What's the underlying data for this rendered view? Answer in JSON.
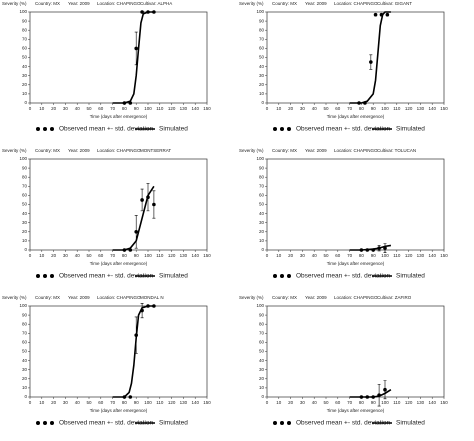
{
  "chart_data": [
    {
      "type": "scatter",
      "header": [
        "Country: MX",
        "Year: 2009",
        "Location: CHAPINGO",
        "Cultivar: ALPHA"
      ],
      "x_label": "Time (days after emergence)",
      "y_label": "Severity (%)",
      "xlim": [
        0,
        150
      ],
      "xticks": [
        0,
        10,
        20,
        30,
        40,
        50,
        60,
        70,
        80,
        90,
        100,
        110,
        120,
        130,
        140,
        150
      ],
      "ylim": [
        0,
        100
      ],
      "yticks": [
        0,
        10,
        20,
        30,
        40,
        50,
        60,
        70,
        80,
        90,
        100
      ],
      "series": [
        {
          "name": "Observed mean +- std. deviation",
          "mode": "markers",
          "color": "#000000",
          "x": [
            80,
            85,
            90,
            95,
            100,
            105
          ],
          "values": [
            0,
            0,
            60,
            100,
            100,
            100
          ],
          "errors": [
            0,
            0,
            18,
            0,
            0,
            0
          ]
        },
        {
          "name": "Simulated",
          "mode": "lines",
          "color": "#000000",
          "x": [
            70,
            80,
            85,
            88,
            90,
            92,
            94,
            96,
            100,
            105
          ],
          "values": [
            0,
            0,
            2,
            10,
            30,
            60,
            88,
            98,
            100,
            100
          ]
        }
      ]
    },
    {
      "type": "scatter",
      "header": [
        "Country: MX",
        "Year: 2009",
        "Location: CHAPINGO",
        "Cultivar: GIGANT"
      ],
      "x_label": "Time (days after emergence)",
      "y_label": "Severity (%)",
      "xlim": [
        0,
        150
      ],
      "xticks": [
        0,
        10,
        20,
        30,
        40,
        50,
        60,
        70,
        80,
        90,
        100,
        110,
        120,
        130,
        140,
        150
      ],
      "ylim": [
        0,
        100
      ],
      "yticks": [
        0,
        10,
        20,
        30,
        40,
        50,
        60,
        70,
        80,
        90,
        100
      ],
      "series": [
        {
          "name": "Observed mean +- std. deviation",
          "mode": "markers",
          "color": "#000000",
          "x": [
            78,
            83,
            88,
            92,
            97,
            102
          ],
          "values": [
            0,
            0,
            45,
            97,
            97,
            97
          ],
          "errors": [
            0,
            0,
            8,
            0,
            0,
            0
          ]
        },
        {
          "name": "Simulated",
          "mode": "lines",
          "color": "#000000",
          "x": [
            70,
            80,
            85,
            90,
            92,
            94,
            96,
            98,
            100,
            105
          ],
          "values": [
            0,
            0,
            2,
            10,
            25,
            55,
            85,
            97,
            100,
            100
          ]
        }
      ]
    },
    {
      "type": "scatter",
      "header": [
        "Country: MX",
        "Year: 2009",
        "Location: CHAPINGO",
        "MONTSERRAT"
      ],
      "x_label": "Time (days after emergence)",
      "y_label": "Severity (%)",
      "xlim": [
        0,
        150
      ],
      "xticks": [
        0,
        10,
        20,
        30,
        40,
        50,
        60,
        70,
        80,
        90,
        100,
        110,
        120,
        130,
        140,
        150
      ],
      "ylim": [
        0,
        100
      ],
      "yticks": [
        0,
        10,
        20,
        30,
        40,
        50,
        60,
        70,
        80,
        90,
        100
      ],
      "series": [
        {
          "name": "Observed mean +- std. deviation",
          "mode": "markers",
          "color": "#000000",
          "x": [
            80,
            85,
            90,
            95,
            100,
            105
          ],
          "values": [
            0,
            0,
            20,
            55,
            58,
            50
          ],
          "errors": [
            0,
            0,
            18,
            12,
            15,
            15
          ]
        },
        {
          "name": "Simulated",
          "mode": "lines",
          "color": "#000000",
          "x": [
            70,
            80,
            85,
            90,
            95,
            100,
            105
          ],
          "values": [
            0,
            0,
            2,
            10,
            35,
            60,
            70
          ]
        }
      ]
    },
    {
      "type": "scatter",
      "header": [
        "Country: MX",
        "Year: 2009",
        "Location: CHAPINGO",
        "Cultivar: TOLUCAN"
      ],
      "x_label": "Time (days after emergence)",
      "y_label": "Severity (%)",
      "xlim": [
        0,
        150
      ],
      "xticks": [
        0,
        10,
        20,
        30,
        40,
        50,
        60,
        70,
        80,
        90,
        100,
        110,
        120,
        130,
        140,
        150
      ],
      "ylim": [
        0,
        100
      ],
      "yticks": [
        0,
        10,
        20,
        30,
        40,
        50,
        60,
        70,
        80,
        90,
        100
      ],
      "series": [
        {
          "name": "Observed mean +- std. deviation",
          "mode": "markers",
          "color": "#000000",
          "x": [
            80,
            85,
            90,
            95,
            100
          ],
          "values": [
            0,
            0,
            0,
            2,
            2
          ],
          "errors": [
            0,
            0,
            0,
            3,
            5
          ]
        },
        {
          "name": "Simulated",
          "mode": "lines",
          "color": "#000000",
          "x": [
            70,
            80,
            90,
            95,
            100,
            105
          ],
          "values": [
            0,
            0,
            1,
            2,
            4,
            5
          ]
        }
      ]
    },
    {
      "type": "scatter",
      "header": [
        "Country: MX",
        "Year: 2009",
        "Location: CHAPINGO",
        "MONDAL N"
      ],
      "x_label": "Time (days after emergence)",
      "y_label": "Severity (%)",
      "xlim": [
        0,
        150
      ],
      "xticks": [
        0,
        10,
        20,
        30,
        40,
        50,
        60,
        70,
        80,
        90,
        100,
        110,
        120,
        130,
        140,
        150
      ],
      "ylim": [
        0,
        100
      ],
      "yticks": [
        0,
        10,
        20,
        30,
        40,
        50,
        60,
        70,
        80,
        90,
        100
      ],
      "series": [
        {
          "name": "Observed mean +- std. deviation",
          "mode": "markers",
          "color": "#000000",
          "x": [
            80,
            85,
            90,
            95,
            100,
            105
          ],
          "values": [
            0,
            0,
            68,
            95,
            100,
            100
          ],
          "errors": [
            0,
            0,
            20,
            8,
            0,
            0
          ]
        },
        {
          "name": "Simulated",
          "mode": "lines",
          "color": "#000000",
          "x": [
            70,
            80,
            84,
            86,
            88,
            90,
            92,
            95,
            100,
            105
          ],
          "values": [
            0,
            0,
            5,
            15,
            35,
            65,
            90,
            98,
            100,
            100
          ]
        }
      ]
    },
    {
      "type": "scatter",
      "header": [
        "Country: MX",
        "Year: 2009",
        "Location: CHAPINGO",
        "Cultivar: ZAFIRO"
      ],
      "x_label": "Time (days after emergence)",
      "y_label": "Severity (%)",
      "xlim": [
        0,
        150
      ],
      "xticks": [
        0,
        10,
        20,
        30,
        40,
        50,
        60,
        70,
        80,
        90,
        100,
        110,
        120,
        130,
        140,
        150
      ],
      "ylim": [
        0,
        100
      ],
      "yticks": [
        0,
        10,
        20,
        30,
        40,
        50,
        60,
        70,
        80,
        90,
        100
      ],
      "series": [
        {
          "name": "Observed mean +- std. deviation",
          "mode": "markers",
          "color": "#000000",
          "x": [
            80,
            85,
            90,
            95,
            100
          ],
          "values": [
            0,
            0,
            0,
            2,
            8
          ],
          "errors": [
            0,
            0,
            0,
            12,
            10
          ]
        },
        {
          "name": "Simulated",
          "mode": "lines",
          "color": "#000000",
          "x": [
            70,
            80,
            90,
            95,
            100,
            105
          ],
          "values": [
            0,
            0,
            0,
            1,
            4,
            8
          ]
        }
      ]
    }
  ]
}
